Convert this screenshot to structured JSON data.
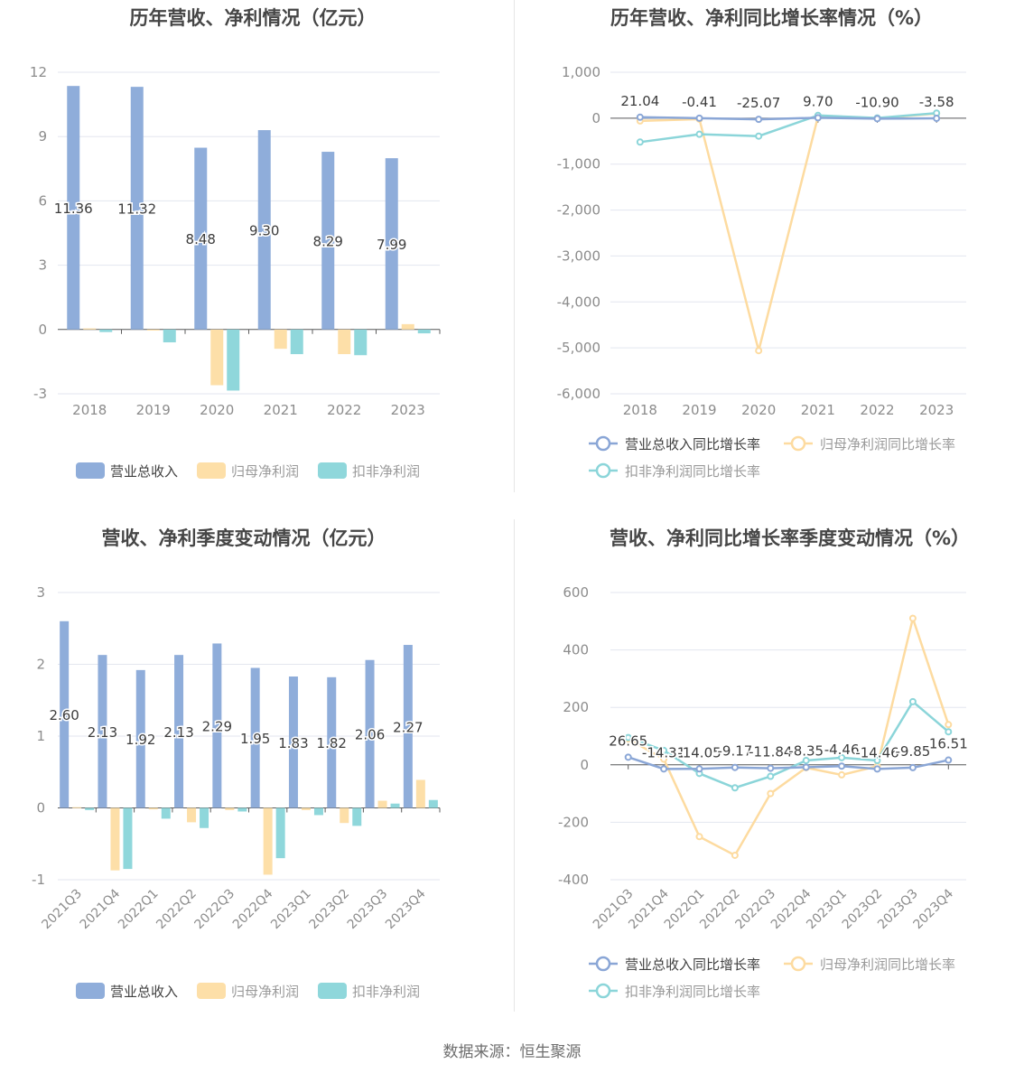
{
  "source": "数据来源：恒生聚源",
  "colors": {
    "revenue": "#8fadda",
    "netprofit": "#fddfa8",
    "deducted": "#8fd7db",
    "grid": "#e3e6ef",
    "axis": "#5c5c5c",
    "tick": "#8c8c8c",
    "label": "#3c3c3c"
  },
  "chart_data": [
    {
      "title": "历年营收、净利情况（亿元）",
      "type": "bar",
      "categories": [
        "2018",
        "2019",
        "2020",
        "2021",
        "2022",
        "2023"
      ],
      "ylim": [
        -3,
        12
      ],
      "yticks": [
        -3,
        0,
        3,
        6,
        9,
        12
      ],
      "ytick_labels": [
        "-3",
        "0",
        "3",
        "6",
        "9",
        "12"
      ],
      "series": [
        {
          "name": "营业总收入",
          "values": [
            11.36,
            11.32,
            8.48,
            9.3,
            8.29,
            7.99
          ],
          "labels": [
            "11.36",
            "11.32",
            "8.48",
            "9.30",
            "8.29",
            "7.99"
          ]
        },
        {
          "name": "归母净利润",
          "values": [
            0.05,
            -0.05,
            -2.6,
            -0.9,
            -1.15,
            0.25
          ]
        },
        {
          "name": "扣非净利润",
          "values": [
            -0.12,
            -0.6,
            -2.85,
            -1.15,
            -1.2,
            -0.18
          ]
        }
      ],
      "legend": "bottom"
    },
    {
      "title": "历年营收、净利同比增长率情况（%）",
      "type": "line",
      "categories": [
        "2018",
        "2019",
        "2020",
        "2021",
        "2022",
        "2023"
      ],
      "ylim": [
        -6000,
        1000
      ],
      "yticks": [
        -6000,
        -5000,
        -4000,
        -3000,
        -2000,
        -1000,
        0,
        1000
      ],
      "ytick_labels": [
        "-6,000",
        "-5,000",
        "-4,000",
        "-3,000",
        "-2,000",
        "-1,000",
        "0",
        "1,000"
      ],
      "series": [
        {
          "name": "营业总收入同比增长率",
          "values": [
            21.04,
            -0.41,
            -25.07,
            9.7,
            -10.9,
            -3.58
          ],
          "labels": [
            "21.04",
            "-0.41",
            "-25.07",
            "9.70",
            "-10.90",
            "-3.58"
          ]
        },
        {
          "name": "归母净利润同比增长率",
          "values": [
            -60,
            -20,
            -5060,
            30,
            -5,
            100
          ]
        },
        {
          "name": "扣非净利润同比增长率",
          "values": [
            -520,
            -350,
            -390,
            60,
            5,
            110
          ]
        }
      ],
      "legend": "bottom"
    },
    {
      "title": "营收、净利季度变动情况（亿元）",
      "type": "bar",
      "categories": [
        "2021Q3",
        "2021Q4",
        "2022Q1",
        "2022Q2",
        "2022Q3",
        "2022Q4",
        "2023Q1",
        "2023Q2",
        "2023Q3",
        "2023Q4"
      ],
      "ylim": [
        -1,
        3
      ],
      "yticks": [
        -1,
        0,
        1,
        2,
        3
      ],
      "ytick_labels": [
        "-1",
        "0",
        "1",
        "2",
        "3"
      ],
      "series": [
        {
          "name": "营业总收入",
          "values": [
            2.6,
            2.13,
            1.92,
            2.13,
            2.29,
            1.95,
            1.83,
            1.82,
            2.06,
            2.27
          ],
          "labels": [
            "2.60",
            "2.13",
            "1.92",
            "2.13",
            "2.29",
            "1.95",
            "1.83",
            "1.82",
            "2.06",
            "2.27"
          ]
        },
        {
          "name": "归母净利润",
          "values": [
            0.01,
            -0.87,
            -0.02,
            -0.2,
            -0.03,
            -0.93,
            -0.03,
            -0.21,
            0.1,
            0.39
          ]
        },
        {
          "name": "扣非净利润",
          "values": [
            -0.03,
            -0.85,
            -0.15,
            -0.28,
            -0.05,
            -0.7,
            -0.1,
            -0.25,
            0.06,
            0.11
          ]
        }
      ],
      "legend": "bottom"
    },
    {
      "title": "营收、净利同比增长率季度变动情况（%）",
      "type": "line",
      "categories": [
        "2021Q3",
        "2021Q4",
        "2022Q1",
        "2022Q2",
        "2022Q3",
        "2022Q4",
        "2023Q1",
        "2023Q2",
        "2023Q3",
        "2023Q4"
      ],
      "ylim": [
        -400,
        600
      ],
      "yticks": [
        -400,
        -200,
        0,
        200,
        400,
        600
      ],
      "ytick_labels": [
        "-400",
        "-200",
        "0",
        "200",
        "400",
        "600"
      ],
      "series": [
        {
          "name": "营业总收入同比增长率",
          "values": [
            26.65,
            -14.31,
            -14.05,
            -9.17,
            -11.84,
            -8.35,
            -4.46,
            -14.46,
            -9.85,
            16.51
          ],
          "labels": [
            "26.65",
            "-14.31",
            "-14.05",
            "-9.17",
            "-11.84",
            "-8.35",
            "-4.46",
            "-14.46",
            "-9.85",
            "16.51"
          ]
        },
        {
          "name": "归母净利润同比增长率",
          "values": [
            90,
            20,
            -250,
            -315,
            -100,
            -10,
            -35,
            -5,
            510,
            140
          ]
        },
        {
          "name": "扣非净利润同比增长率",
          "values": [
            95,
            50,
            -30,
            -80,
            -40,
            15,
            25,
            15,
            220,
            115
          ]
        }
      ],
      "legend": "bottom"
    }
  ]
}
